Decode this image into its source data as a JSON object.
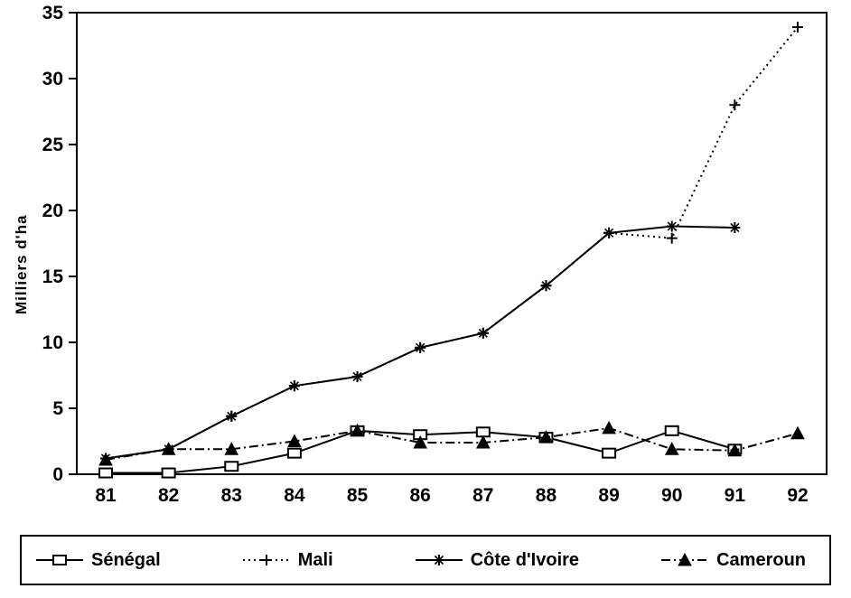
{
  "chart_data": {
    "type": "line",
    "title": "",
    "xlabel": "",
    "ylabel": "Milliers d'ha",
    "ylim": [
      0,
      35
    ],
    "yticks": [
      0,
      5,
      10,
      15,
      20,
      25,
      30,
      35
    ],
    "categories": [
      "81",
      "82",
      "83",
      "84",
      "85",
      "86",
      "87",
      "88",
      "89",
      "90",
      "91",
      "92"
    ],
    "grid": false,
    "legend_position": "bottom",
    "series": [
      {
        "name": "Sénégal",
        "marker": "square",
        "line": "solid",
        "values": [
          0.1,
          0.1,
          0.6,
          1.6,
          3.3,
          3.0,
          3.2,
          2.8,
          1.6,
          3.3,
          1.9,
          null
        ]
      },
      {
        "name": "Mali",
        "marker": "plus",
        "line": "dotted",
        "values": [
          1.2,
          1.9,
          4.4,
          6.7,
          7.4,
          9.6,
          10.7,
          14.3,
          18.3,
          17.9,
          28.0,
          33.9
        ]
      },
      {
        "name": "Côte d'Ivoire",
        "marker": "asterisk",
        "line": "solid",
        "values": [
          1.2,
          1.9,
          4.4,
          6.7,
          7.4,
          9.6,
          10.7,
          14.3,
          18.3,
          18.8,
          18.7,
          null
        ]
      },
      {
        "name": "Cameroun",
        "marker": "triangle",
        "line": "dashdot",
        "values": [
          1.1,
          1.9,
          1.9,
          2.5,
          3.3,
          2.4,
          2.4,
          2.8,
          3.5,
          1.9,
          1.8,
          3.1
        ]
      }
    ],
    "colors": {
      "ink": "#000000",
      "background": "#ffffff"
    }
  }
}
